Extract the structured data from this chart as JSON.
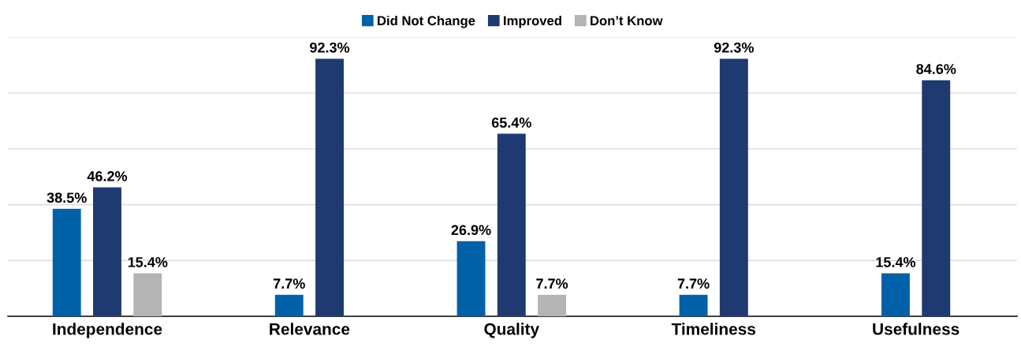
{
  "chart_data": {
    "type": "bar",
    "categories": [
      "Independence",
      "Relevance",
      "Quality",
      "Timeliness",
      "Usefulness"
    ],
    "series": [
      {
        "name": "Did Not Change",
        "color": "#0061a8",
        "values": [
          38.5,
          7.7,
          26.9,
          7.7,
          15.4
        ],
        "value_labels": [
          "38.5%",
          "7.7%",
          "26.9%",
          "7.7%",
          "15.4%"
        ]
      },
      {
        "name": "Improved",
        "color": "#1f3a70",
        "values": [
          46.2,
          92.3,
          65.4,
          92.3,
          84.6
        ],
        "value_labels": [
          "46.2%",
          "92.3%",
          "65.4%",
          "92.3%",
          "84.6%"
        ]
      },
      {
        "name": "Don’t Know",
        "color": "#b4b4b4",
        "values": [
          15.4,
          null,
          7.7,
          null,
          null
        ],
        "value_labels": [
          "15.4%",
          null,
          "7.7%",
          null,
          null
        ]
      }
    ],
    "ylim": [
      0,
      100
    ],
    "yticks": [
      {
        "value": 0,
        "label": null
      },
      {
        "value": 20,
        "label": null
      },
      {
        "value": 40,
        "label": null
      },
      {
        "value": 60,
        "label": null
      },
      {
        "value": 80,
        "label": null
      },
      {
        "value": 100,
        "label": null
      }
    ],
    "grid": "y",
    "legend": "top",
    "tick_labels": "x"
  }
}
